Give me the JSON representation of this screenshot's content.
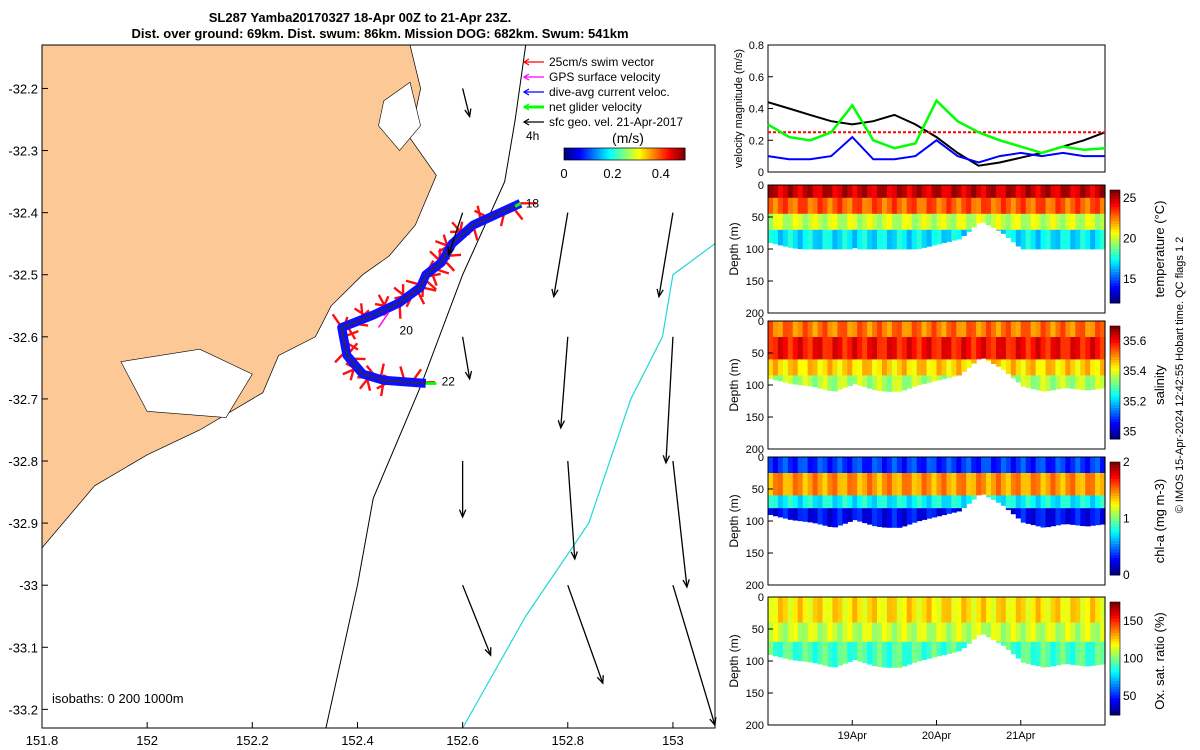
{
  "header": {
    "line1": "SL287 Yamba20170327 18-Apr 00Z to 21-Apr 23Z.",
    "line2": "Dist. over ground: 69km. Dist. swum: 86km. Mission DOG: 682km. Swum: 541km"
  },
  "map": {
    "lon_ticks": [
      "151.8",
      "152",
      "152.2",
      "152.4",
      "152.6",
      "152.8",
      "153"
    ],
    "lat_ticks": [
      "-32.2",
      "-32.3",
      "-32.4",
      "-32.5",
      "-32.6",
      "-32.7",
      "-32.8",
      "-32.9",
      "-33",
      "-33.1",
      "-33.2"
    ],
    "xlim": [
      151.8,
      153.08
    ],
    "ylim": [
      -33.23,
      -32.13
    ],
    "legend": [
      {
        "label": "25cm/s swim vector",
        "color": "#ff0000"
      },
      {
        "label": "GPS surface velocity",
        "color": "#ff00ff"
      },
      {
        "label": "dive-avg current veloc.",
        "color": "#0000ff"
      },
      {
        "label": "net glider velocity",
        "color": "#00ff00"
      },
      {
        "label": "sfc geo. vel. 21-Apr-2017",
        "color": "#000000"
      }
    ],
    "vec_label": "4h",
    "colorbar": {
      "title": "(m/s)",
      "ticks": [
        "0",
        "0.2",
        "0.4"
      ],
      "range": [
        0,
        0.5
      ]
    },
    "day_labels": [
      {
        "text": "18",
        "lon": 152.72,
        "lat": -32.385
      },
      {
        "text": "20",
        "lon": 152.48,
        "lat": -32.59
      },
      {
        "text": "22",
        "lon": 152.56,
        "lat": -32.672
      }
    ],
    "isobath_label": "isobaths: 0   200  1000m",
    "track": [
      [
        152.71,
        -32.385
      ],
      [
        152.62,
        -32.42
      ],
      [
        152.58,
        -32.45
      ],
      [
        152.56,
        -32.48
      ],
      [
        152.53,
        -32.5
      ],
      [
        152.52,
        -32.52
      ],
      [
        152.48,
        -32.545
      ],
      [
        152.43,
        -32.565
      ],
      [
        152.37,
        -32.585
      ],
      [
        152.38,
        -32.63
      ],
      [
        152.41,
        -32.66
      ],
      [
        152.45,
        -32.67
      ],
      [
        152.53,
        -32.675
      ]
    ],
    "geo_vectors": [
      {
        "lon": 152.6,
        "lat": -32.2,
        "u": 0.01,
        "v": -0.04
      },
      {
        "lon": 152.6,
        "lat": -32.4,
        "u": -0.02,
        "v": -0.06
      },
      {
        "lon": 152.8,
        "lat": -32.4,
        "u": -0.02,
        "v": -0.12
      },
      {
        "lon": 153.0,
        "lat": -32.4,
        "u": -0.02,
        "v": -0.12
      },
      {
        "lon": 152.6,
        "lat": -32.6,
        "u": 0.01,
        "v": -0.06
      },
      {
        "lon": 152.8,
        "lat": -32.6,
        "u": -0.01,
        "v": -0.13
      },
      {
        "lon": 153.0,
        "lat": -32.6,
        "u": -0.01,
        "v": -0.18
      },
      {
        "lon": 152.6,
        "lat": -32.8,
        "u": 0.0,
        "v": -0.08
      },
      {
        "lon": 152.8,
        "lat": -32.8,
        "u": 0.01,
        "v": -0.14
      },
      {
        "lon": 153.0,
        "lat": -32.8,
        "u": 0.02,
        "v": -0.18
      },
      {
        "lon": 152.6,
        "lat": -33.0,
        "u": 0.04,
        "v": -0.1
      },
      {
        "lon": 152.8,
        "lat": -33.0,
        "u": 0.05,
        "v": -0.14
      },
      {
        "lon": 153.0,
        "lat": -33.0,
        "u": 0.06,
        "v": -0.2
      }
    ]
  },
  "chart_data": [
    {
      "type": "line",
      "ylabel": "velocity magnitude (m/s)",
      "ylim": [
        0,
        0.8
      ],
      "yticks": [
        "0",
        "0.2",
        "0.4",
        "0.6",
        "0.8"
      ],
      "x": [
        0,
        0.25,
        0.5,
        0.75,
        1,
        1.25,
        1.5,
        1.75,
        2,
        2.25,
        2.5,
        2.75,
        3,
        3.25,
        3.5,
        3.75,
        4
      ],
      "series": [
        {
          "color": "#000000",
          "values": [
            0.44,
            0.4,
            0.36,
            0.32,
            0.3,
            0.32,
            0.36,
            0.3,
            0.22,
            0.12,
            0.04,
            0.06,
            0.09,
            0.12,
            0.16,
            0.2,
            0.25
          ]
        },
        {
          "color": "#ff0000",
          "values": [
            0.25,
            0.25,
            0.25,
            0.25,
            0.25,
            0.25,
            0.25,
            0.25,
            0.25,
            0.25,
            0.25,
            0.25,
            0.25,
            0.25,
            0.25,
            0.25,
            0.25
          ]
        },
        {
          "color": "#00ff00",
          "values": [
            0.3,
            0.22,
            0.2,
            0.25,
            0.42,
            0.2,
            0.15,
            0.18,
            0.45,
            0.32,
            0.25,
            0.2,
            0.16,
            0.12,
            0.16,
            0.14,
            0.15
          ]
        },
        {
          "color": "#0000ff",
          "values": [
            0.1,
            0.08,
            0.08,
            0.1,
            0.22,
            0.08,
            0.08,
            0.1,
            0.2,
            0.1,
            0.06,
            0.1,
            0.12,
            0.1,
            0.12,
            0.1,
            0.1
          ]
        }
      ]
    },
    {
      "type": "heatmap",
      "clabel": "temperature (°C)",
      "crange": [
        12,
        26
      ],
      "cticks": [
        "25",
        "20",
        "15"
      ],
      "yticks": [
        "0",
        "50",
        "100",
        "150",
        "200"
      ],
      "ylabel": "Depth (m)",
      "xlim": [
        0,
        4
      ],
      "ylim": [
        0,
        200
      ],
      "x": [
        0,
        0.25,
        0.5,
        0.75,
        1,
        1.25,
        1.5,
        1.75,
        2,
        2.25,
        2.5,
        2.75,
        3,
        3.25,
        3.5,
        3.75,
        4
      ],
      "bottom_depth": [
        90,
        98,
        102,
        110,
        98,
        108,
        112,
        100,
        92,
        84,
        56,
        74,
        102,
        110,
        104,
        108,
        104
      ],
      "layers": [
        [
          0,
          20,
          25
        ],
        [
          20,
          45,
          23
        ],
        [
          45,
          70,
          20
        ],
        [
          70,
          100,
          17
        ]
      ]
    },
    {
      "type": "heatmap",
      "clabel": "salinity",
      "crange": [
        34.95,
        35.7
      ],
      "cticks": [
        "35.6",
        "35.4",
        "35.2",
        "35"
      ],
      "yticks": [
        "0",
        "50",
        "100",
        "150",
        "200"
      ],
      "ylabel": "Depth (m)",
      "xlim": [
        0,
        4
      ],
      "ylim": [
        0,
        200
      ],
      "x": [
        0,
        0.25,
        0.5,
        0.75,
        1,
        1.25,
        1.5,
        1.75,
        2,
        2.25,
        2.5,
        2.75,
        3,
        3.25,
        3.5,
        3.75,
        4
      ],
      "bottom_depth": [
        90,
        98,
        102,
        110,
        98,
        108,
        112,
        100,
        92,
        84,
        56,
        74,
        102,
        110,
        104,
        108,
        104
      ],
      "layers": [
        [
          0,
          25,
          35.52
        ],
        [
          25,
          60,
          35.6
        ],
        [
          60,
          85,
          35.45
        ],
        [
          85,
          110,
          35.36
        ]
      ]
    },
    {
      "type": "heatmap",
      "clabel": "chl-a (mg m-3)",
      "crange": [
        0,
        2
      ],
      "cticks": [
        "2",
        "1",
        "0"
      ],
      "yticks": [
        "0",
        "50",
        "100",
        "150",
        "200"
      ],
      "ylabel": "Depth (m)",
      "xlim": [
        0,
        4
      ],
      "ylim": [
        0,
        200
      ],
      "x": [
        0,
        0.25,
        0.5,
        0.75,
        1,
        1.25,
        1.5,
        1.75,
        2,
        2.25,
        2.5,
        2.75,
        3,
        3.25,
        3.5,
        3.75,
        4
      ],
      "bottom_depth": [
        90,
        98,
        102,
        110,
        98,
        108,
        112,
        100,
        92,
        84,
        56,
        74,
        102,
        110,
        104,
        108,
        104
      ],
      "layers": [
        [
          0,
          25,
          0.35
        ],
        [
          25,
          60,
          1.45
        ],
        [
          60,
          80,
          0.75
        ],
        [
          80,
          110,
          0.25
        ]
      ]
    },
    {
      "type": "heatmap",
      "clabel": "Ox. sat. ratio (%)",
      "crange": [
        25,
        175
      ],
      "cticks": [
        "150",
        "100",
        "50"
      ],
      "yticks": [
        "0",
        "50",
        "100",
        "150",
        "200"
      ],
      "ylabel": "Depth (m)",
      "xlim": [
        0,
        4
      ],
      "ylim": [
        0,
        200
      ],
      "x": [
        0,
        0.25,
        0.5,
        0.75,
        1,
        1.25,
        1.5,
        1.75,
        2,
        2.25,
        2.5,
        2.75,
        3,
        3.25,
        3.5,
        3.75,
        4
      ],
      "bottom_depth": [
        90,
        98,
        102,
        110,
        98,
        108,
        112,
        100,
        92,
        84,
        56,
        74,
        102,
        110,
        104,
        108,
        104
      ],
      "layers": [
        [
          0,
          40,
          122
        ],
        [
          40,
          70,
          110
        ],
        [
          70,
          110,
          92
        ]
      ],
      "xticks": [
        "19Apr",
        "20Apr",
        "21Apr"
      ],
      "xtick_pos": [
        1,
        2,
        3
      ]
    }
  ],
  "footer": {
    "credit": "© IMOS 15-Apr-2024 12:42:55 Hobart time. QC flags 1  2"
  }
}
